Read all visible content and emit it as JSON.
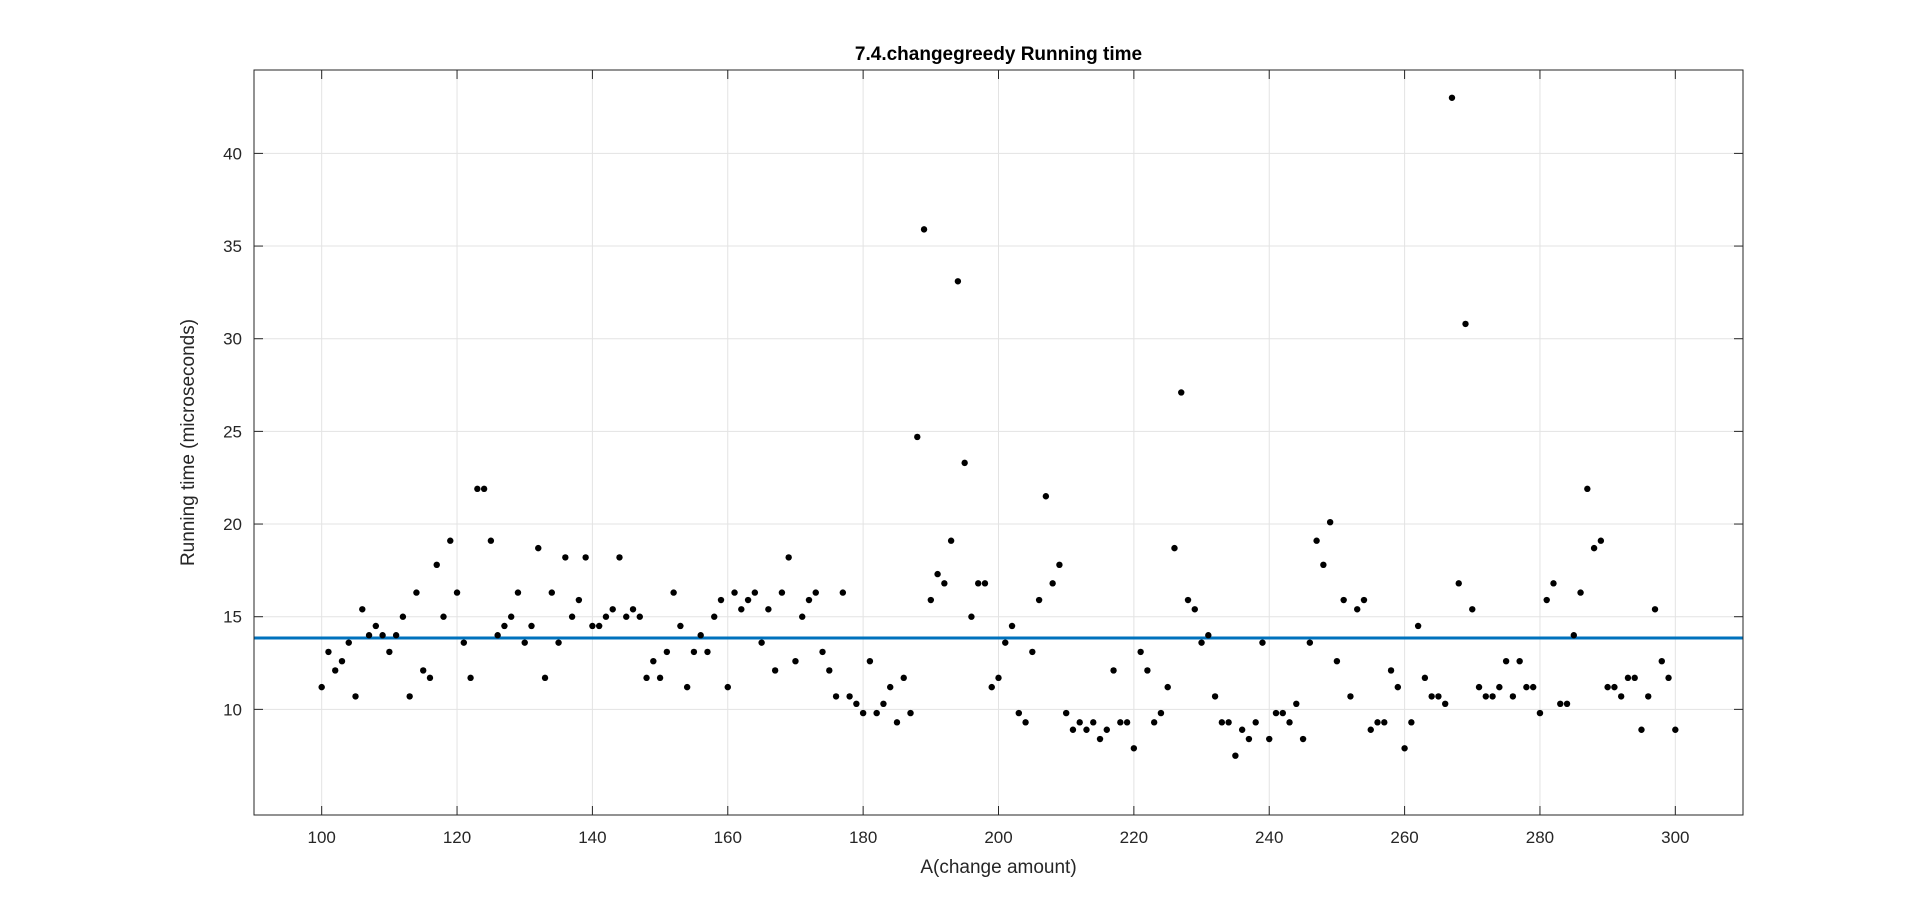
{
  "chart_data": {
    "type": "scatter",
    "title": "7.4.changegreedy Running time",
    "xlabel": "A(change amount)",
    "ylabel": "Running time (microseconds)",
    "xlim": [
      90,
      310
    ],
    "ylim": [
      4.3,
      44.5
    ],
    "xticks": [
      100,
      120,
      140,
      160,
      180,
      200,
      220,
      240,
      260,
      280,
      300
    ],
    "yticks": [
      10,
      15,
      20,
      25,
      30,
      35,
      40
    ],
    "grid": true,
    "colors": {
      "points": "#000000",
      "mean_line": "#0072BD",
      "grid": "#e3e3e3",
      "axes": "#262626"
    },
    "mean_line": 13.85,
    "x_start": 100,
    "y": [
      11.2,
      13.1,
      12.1,
      12.6,
      13.6,
      10.7,
      15.4,
      14.0,
      14.5,
      14.0,
      13.1,
      14.0,
      15.0,
      10.7,
      16.3,
      12.1,
      11.7,
      17.8,
      15.0,
      19.1,
      16.3,
      13.6,
      11.7,
      21.9,
      21.9,
      19.1,
      14.0,
      14.5,
      15.0,
      16.3,
      13.6,
      14.5,
      18.7,
      11.7,
      16.3,
      13.6,
      18.2,
      15.0,
      15.9,
      18.2,
      14.5,
      14.5,
      15.0,
      15.4,
      18.2,
      15.0,
      15.4,
      15.0,
      11.7,
      12.6,
      11.7,
      13.1,
      16.3,
      14.5,
      11.2,
      13.1,
      14.0,
      13.1,
      15.0,
      15.9,
      11.2,
      16.3,
      15.4,
      15.9,
      16.3,
      13.6,
      15.4,
      12.1,
      16.3,
      18.2,
      12.6,
      15.0,
      15.9,
      16.3,
      13.1,
      12.1,
      10.7,
      16.3,
      10.7,
      10.3,
      9.8,
      12.6,
      9.8,
      10.3,
      11.2,
      9.3,
      11.7,
      9.8,
      24.7,
      35.9,
      15.9,
      17.3,
      16.8,
      19.1,
      33.1,
      23.3,
      15.0,
      16.8,
      16.8,
      11.2,
      11.7,
      13.6,
      14.5,
      9.8,
      9.3,
      13.1,
      15.9,
      21.5,
      16.8,
      17.8,
      9.8,
      8.9,
      9.3,
      8.9,
      9.3,
      8.4,
      8.9,
      12.1,
      9.3,
      9.3,
      7.9,
      13.1,
      12.1,
      9.3,
      9.8,
      11.2,
      18.7,
      27.1,
      15.9,
      15.4,
      13.6,
      14.0,
      10.7,
      9.3,
      9.3,
      7.5,
      8.9,
      8.4,
      9.3,
      13.6,
      8.4,
      9.8,
      9.8,
      9.3,
      10.3,
      8.4,
      13.6,
      19.1,
      17.8,
      20.1,
      12.6,
      15.9,
      10.7,
      15.4,
      15.9,
      8.9,
      9.3,
      9.3,
      12.1,
      11.2,
      7.9,
      9.3,
      14.5,
      11.7,
      10.7,
      10.7,
      10.3,
      43.0,
      16.8,
      30.8,
      15.4,
      11.2,
      10.7,
      10.7,
      11.2,
      12.6,
      10.7,
      12.6,
      11.2,
      11.2,
      9.8,
      15.9,
      16.8,
      10.3,
      10.3,
      14.0,
      16.3,
      21.9,
      18.7,
      19.1,
      11.2,
      11.2,
      10.7,
      11.7,
      11.7,
      8.9,
      10.7,
      15.4,
      12.6,
      11.7,
      8.9
    ]
  }
}
